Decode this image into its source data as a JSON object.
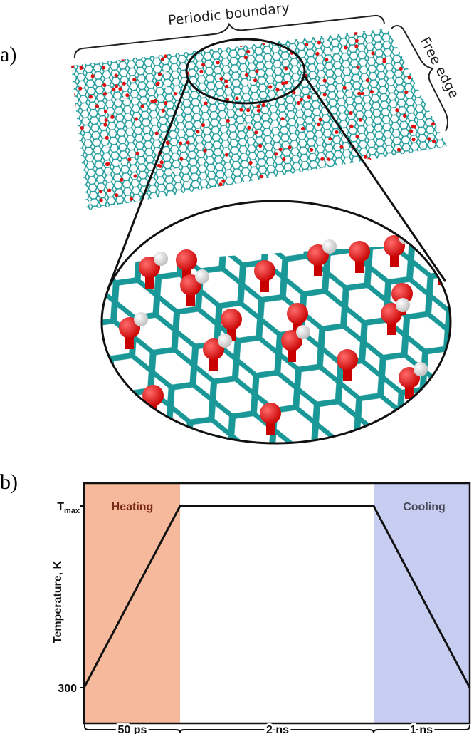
{
  "panel_a": {
    "label": "a)",
    "top_annotation": "Periodic boundary",
    "side_annotation": "Free edge"
  },
  "panel_b": {
    "label": "b)",
    "y_axis_label": "Temperature, K",
    "y_tick_top": {
      "base": "T",
      "subscript": "max"
    },
    "y_tick_bottom": "300",
    "regions": [
      "Heating",
      "Cooling"
    ],
    "durations": [
      "50 ps",
      "2 ns",
      "1 ns"
    ]
  }
}
